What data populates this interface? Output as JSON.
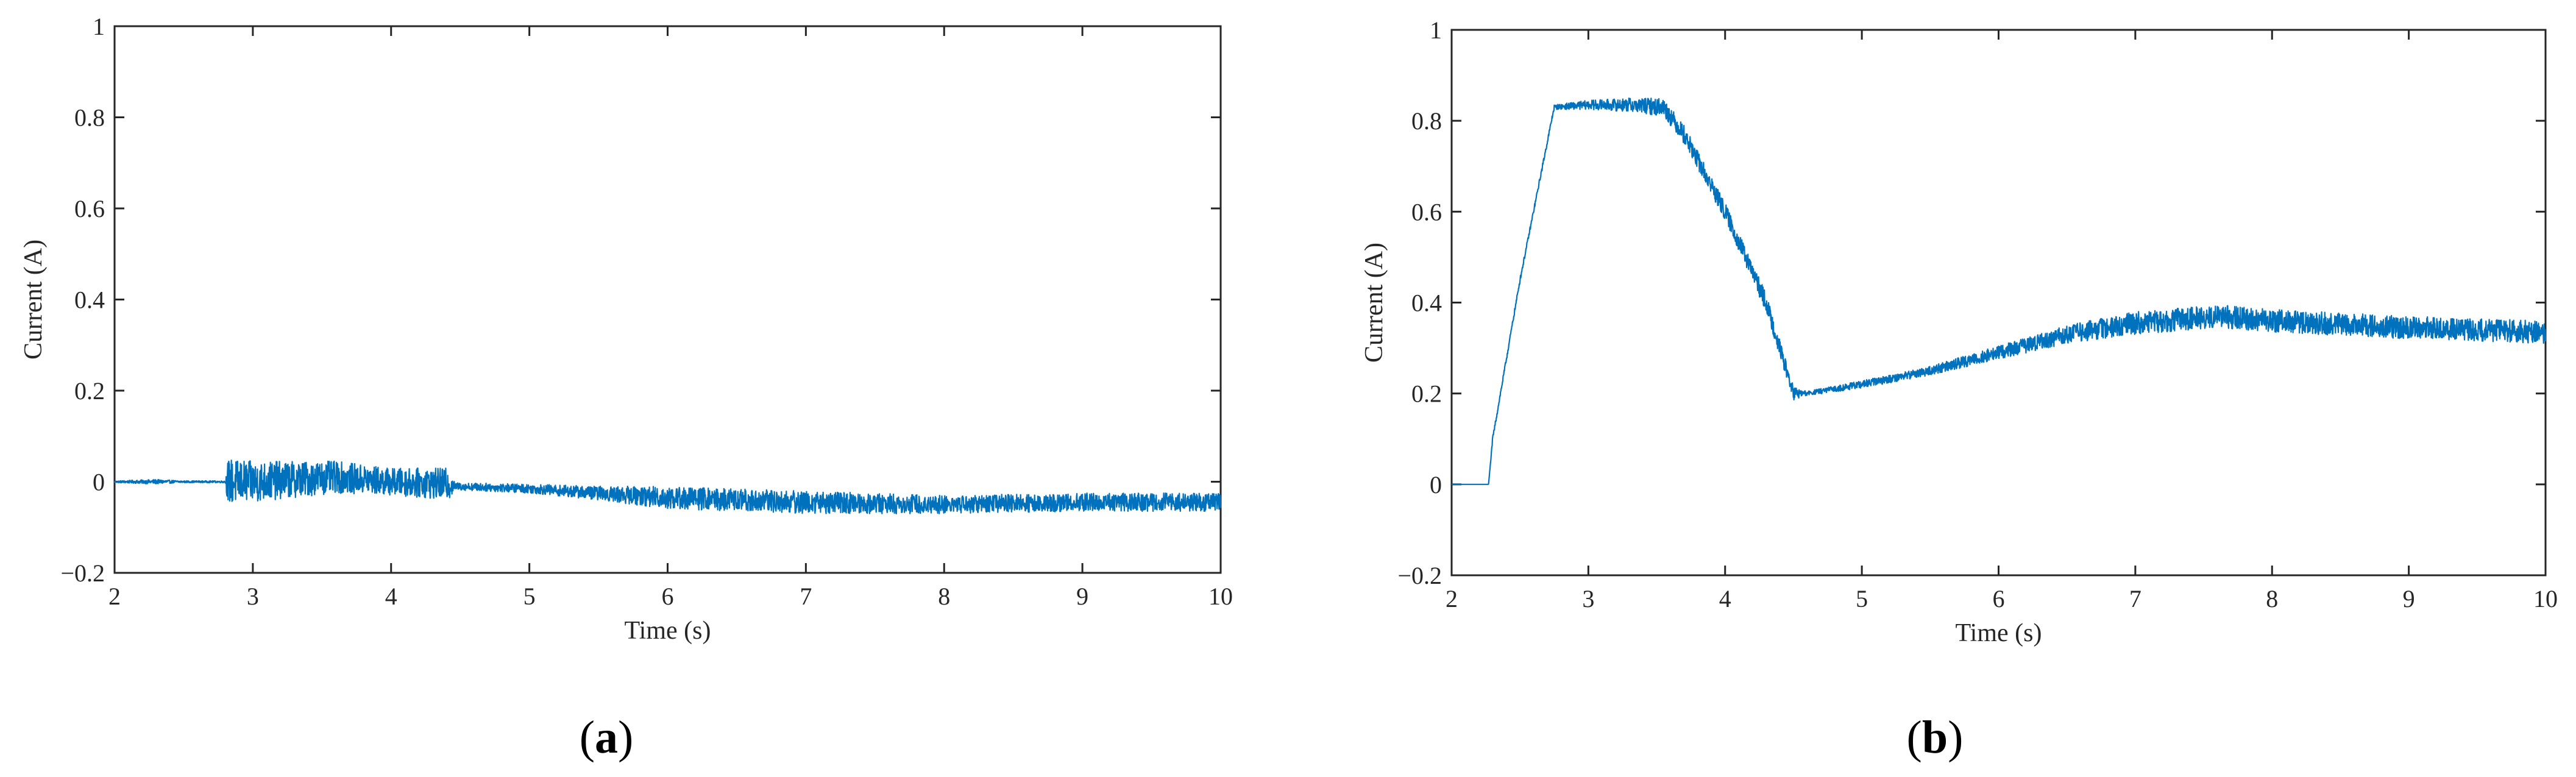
{
  "figure": {
    "series_color": "#0072BD",
    "axis_color": "#262626"
  },
  "chart_data": [
    {
      "type": "line",
      "panel_label": "a",
      "panel_label_paren_open": "(",
      "panel_label_paren_close": ")",
      "xlabel": "Time (s)",
      "ylabel": "Current (A)",
      "xlim": [
        2,
        10
      ],
      "ylim": [
        -0.2,
        1
      ],
      "xticks": [
        2,
        3,
        4,
        5,
        6,
        7,
        8,
        9,
        10
      ],
      "xtick_labels": [
        "2",
        "3",
        "4",
        "5",
        "6",
        "7",
        "8",
        "9",
        "10"
      ],
      "yticks": [
        -0.2,
        0,
        0.2,
        0.4,
        0.6,
        0.8,
        1
      ],
      "ytick_labels": [
        "−0.2",
        "0",
        "0.2",
        "0.4",
        "0.6",
        "0.8",
        "1"
      ],
      "grid": false,
      "series": [
        {
          "envelope": [
            {
              "x": 2.0,
              "mean": 0.0,
              "amp": 0.002
            },
            {
              "x": 2.3,
              "mean": 0.0,
              "amp": 0.005
            },
            {
              "x": 2.5,
              "mean": 0.0,
              "amp": 0.002
            },
            {
              "x": 2.8,
              "mean": 0.0,
              "amp": 0.002
            },
            {
              "x": 2.82,
              "mean": 0.0,
              "amp": 0.05
            },
            {
              "x": 3.0,
              "mean": 0.0,
              "amp": 0.045
            },
            {
              "x": 3.3,
              "mean": 0.005,
              "amp": 0.04
            },
            {
              "x": 3.6,
              "mean": 0.01,
              "amp": 0.035
            },
            {
              "x": 4.0,
              "mean": 0.0,
              "amp": 0.03
            },
            {
              "x": 4.42,
              "mean": -0.005,
              "amp": 0.035
            },
            {
              "x": 4.46,
              "mean": -0.01,
              "amp": 0.008
            },
            {
              "x": 5.0,
              "mean": -0.015,
              "amp": 0.01
            },
            {
              "x": 5.5,
              "mean": -0.025,
              "amp": 0.015
            },
            {
              "x": 6.0,
              "mean": -0.035,
              "amp": 0.025
            },
            {
              "x": 6.5,
              "mean": -0.04,
              "amp": 0.025
            },
            {
              "x": 7.0,
              "mean": -0.045,
              "amp": 0.025
            },
            {
              "x": 8.0,
              "mean": -0.05,
              "amp": 0.02
            },
            {
              "x": 9.0,
              "mean": -0.045,
              "amp": 0.02
            },
            {
              "x": 10.0,
              "mean": -0.045,
              "amp": 0.02
            }
          ]
        }
      ]
    },
    {
      "type": "line",
      "panel_label": "b",
      "panel_label_paren_open": "(",
      "panel_label_paren_close": ")",
      "xlabel": "Time (s)",
      "ylabel": "Current (A)",
      "xlim": [
        2,
        10
      ],
      "ylim": [
        -0.2,
        1
      ],
      "xticks": [
        2,
        3,
        4,
        5,
        6,
        7,
        8,
        9,
        10
      ],
      "xtick_labels": [
        "2",
        "3",
        "4",
        "5",
        "6",
        "7",
        "8",
        "9",
        "10"
      ],
      "yticks": [
        -0.2,
        0,
        0.2,
        0.4,
        0.6,
        0.8,
        1
      ],
      "ytick_labels": [
        "−0.2",
        "0",
        "0.2",
        "0.4",
        "0.6",
        "0.8",
        "1"
      ],
      "grid": false,
      "series": [
        {
          "envelope": [
            {
              "x": 2.0,
              "mean": 0.0,
              "amp": 0.0
            },
            {
              "x": 2.27,
              "mean": 0.0,
              "amp": 0.0
            },
            {
              "x": 2.3,
              "mean": 0.1,
              "amp": 0.005
            },
            {
              "x": 2.5,
              "mean": 0.45,
              "amp": 0.005
            },
            {
              "x": 2.75,
              "mean": 0.83,
              "amp": 0.005
            },
            {
              "x": 3.0,
              "mean": 0.835,
              "amp": 0.01
            },
            {
              "x": 3.3,
              "mean": 0.835,
              "amp": 0.015
            },
            {
              "x": 3.55,
              "mean": 0.83,
              "amp": 0.02
            },
            {
              "x": 3.7,
              "mean": 0.77,
              "amp": 0.02
            },
            {
              "x": 4.0,
              "mean": 0.6,
              "amp": 0.02
            },
            {
              "x": 4.3,
              "mean": 0.4,
              "amp": 0.02
            },
            {
              "x": 4.5,
              "mean": 0.2,
              "amp": 0.015
            },
            {
              "x": 4.6,
              "mean": 0.2,
              "amp": 0.005
            },
            {
              "x": 5.0,
              "mean": 0.22,
              "amp": 0.008
            },
            {
              "x": 5.5,
              "mean": 0.25,
              "amp": 0.01
            },
            {
              "x": 6.0,
              "mean": 0.29,
              "amp": 0.015
            },
            {
              "x": 6.5,
              "mean": 0.33,
              "amp": 0.02
            },
            {
              "x": 7.0,
              "mean": 0.355,
              "amp": 0.025
            },
            {
              "x": 7.6,
              "mean": 0.37,
              "amp": 0.025
            },
            {
              "x": 8.0,
              "mean": 0.36,
              "amp": 0.025
            },
            {
              "x": 9.0,
              "mean": 0.345,
              "amp": 0.025
            },
            {
              "x": 10.0,
              "mean": 0.335,
              "amp": 0.025
            }
          ]
        }
      ]
    }
  ]
}
